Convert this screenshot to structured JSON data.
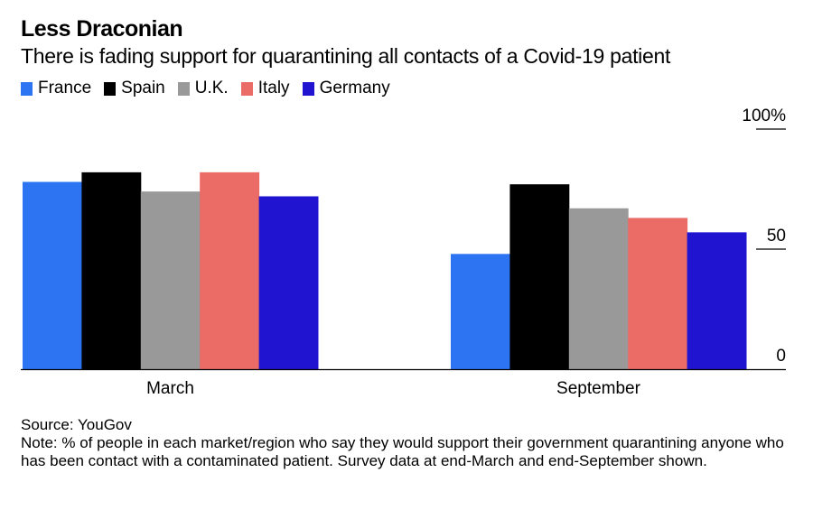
{
  "chart_data": {
    "type": "bar",
    "title": "Less Draconian",
    "subtitle": "There is fading support for quarantining all contacts of a Covid-19 patient",
    "categories": [
      "March",
      "September"
    ],
    "series": [
      {
        "name": "France",
        "color": "#2d74f2",
        "values": [
          78,
          48
        ]
      },
      {
        "name": "Spain",
        "color": "#000000",
        "values": [
          82,
          77
        ]
      },
      {
        "name": "U.K.",
        "color": "#999999",
        "values": [
          74,
          67
        ]
      },
      {
        "name": "Italy",
        "color": "#eb6b67",
        "values": [
          82,
          63
        ]
      },
      {
        "name": "Germany",
        "color": "#2014d0",
        "values": [
          72,
          57
        ]
      }
    ],
    "ylim": [
      0,
      100
    ],
    "yticks": [
      {
        "value": 0,
        "label": "0"
      },
      {
        "value": 50,
        "label": "50"
      },
      {
        "value": 100,
        "label": "100%"
      }
    ],
    "xlabel": "",
    "ylabel": "",
    "legend_position": "top-left",
    "grid": false,
    "y_axis_side": "right"
  },
  "footer": {
    "source": "Source: YouGov",
    "note": "Note: % of people in each market/region who say they would support their government quarantining anyone who has been contact with a contaminated patient. Survey data at end-March and end-September shown."
  }
}
